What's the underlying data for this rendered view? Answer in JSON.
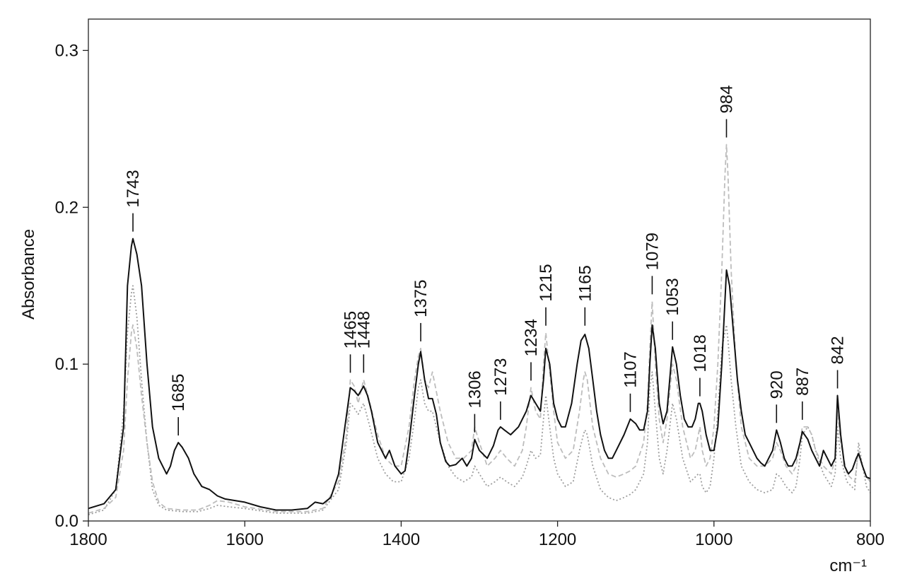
{
  "chart_data": {
    "type": "line",
    "xlabel": "cm⁻¹",
    "ylabel": "Absorbance",
    "xlim": [
      1800,
      800
    ],
    "ylim": [
      0.0,
      0.32
    ],
    "x_reversed": true,
    "x_ticks": [
      1800,
      1600,
      1400,
      1200,
      1000,
      800
    ],
    "y_ticks": [
      0.0,
      0.1,
      0.2,
      0.3
    ],
    "y_tick_labels": [
      "0.0",
      "0.1",
      "0.2",
      "0.3"
    ],
    "grid": false,
    "legend": "none",
    "series": [
      {
        "style": "solid",
        "color": "#111111",
        "x": [
          1800,
          1780,
          1765,
          1755,
          1750,
          1745,
          1743,
          1738,
          1732,
          1725,
          1718,
          1710,
          1700,
          1695,
          1690,
          1685,
          1680,
          1672,
          1665,
          1655,
          1645,
          1635,
          1625,
          1600,
          1580,
          1560,
          1540,
          1520,
          1510,
          1500,
          1490,
          1480,
          1472,
          1465,
          1460,
          1455,
          1448,
          1443,
          1438,
          1430,
          1420,
          1415,
          1408,
          1400,
          1395,
          1390,
          1383,
          1378,
          1375,
          1370,
          1365,
          1360,
          1355,
          1350,
          1343,
          1338,
          1330,
          1322,
          1316,
          1310,
          1306,
          1300,
          1290,
          1282,
          1276,
          1273,
          1268,
          1260,
          1250,
          1240,
          1234,
          1228,
          1222,
          1218,
          1215,
          1210,
          1205,
          1200,
          1195,
          1190,
          1182,
          1175,
          1170,
          1165,
          1160,
          1155,
          1150,
          1145,
          1140,
          1135,
          1130,
          1125,
          1115,
          1107,
          1100,
          1095,
          1090,
          1085,
          1082,
          1079,
          1075,
          1070,
          1065,
          1060,
          1053,
          1048,
          1043,
          1038,
          1033,
          1028,
          1024,
          1020,
          1018,
          1015,
          1010,
          1005,
          1000,
          995,
          990,
          985,
          984,
          980,
          975,
          970,
          965,
          960,
          955,
          950,
          945,
          940,
          935,
          930,
          925,
          920,
          915,
          910,
          905,
          900,
          895,
          890,
          887,
          880,
          875,
          870,
          865,
          860,
          855,
          850,
          845,
          842,
          838,
          833,
          828,
          823,
          818,
          815,
          810,
          805,
          800
        ],
        "values": [
          0.008,
          0.011,
          0.02,
          0.06,
          0.15,
          0.175,
          0.18,
          0.17,
          0.15,
          0.1,
          0.06,
          0.04,
          0.03,
          0.035,
          0.045,
          0.05,
          0.047,
          0.04,
          0.03,
          0.022,
          0.02,
          0.016,
          0.014,
          0.012,
          0.009,
          0.007,
          0.007,
          0.008,
          0.012,
          0.011,
          0.015,
          0.03,
          0.06,
          0.085,
          0.083,
          0.08,
          0.086,
          0.08,
          0.07,
          0.05,
          0.04,
          0.045,
          0.035,
          0.03,
          0.032,
          0.05,
          0.08,
          0.1,
          0.108,
          0.09,
          0.078,
          0.078,
          0.068,
          0.05,
          0.038,
          0.035,
          0.036,
          0.04,
          0.035,
          0.04,
          0.052,
          0.045,
          0.04,
          0.048,
          0.058,
          0.06,
          0.058,
          0.055,
          0.06,
          0.07,
          0.08,
          0.075,
          0.07,
          0.09,
          0.11,
          0.1,
          0.075,
          0.065,
          0.06,
          0.06,
          0.075,
          0.1,
          0.115,
          0.119,
          0.11,
          0.09,
          0.07,
          0.055,
          0.045,
          0.04,
          0.04,
          0.045,
          0.055,
          0.065,
          0.062,
          0.058,
          0.058,
          0.07,
          0.1,
          0.125,
          0.11,
          0.075,
          0.062,
          0.07,
          0.111,
          0.1,
          0.08,
          0.065,
          0.06,
          0.06,
          0.065,
          0.075,
          0.075,
          0.07,
          0.055,
          0.045,
          0.045,
          0.06,
          0.1,
          0.15,
          0.16,
          0.15,
          0.12,
          0.09,
          0.07,
          0.055,
          0.05,
          0.045,
          0.04,
          0.037,
          0.035,
          0.04,
          0.045,
          0.058,
          0.05,
          0.04,
          0.035,
          0.035,
          0.04,
          0.05,
          0.057,
          0.052,
          0.045,
          0.04,
          0.035,
          0.045,
          0.04,
          0.035,
          0.04,
          0.08,
          0.055,
          0.035,
          0.03,
          0.033,
          0.04,
          0.043,
          0.035,
          0.028,
          0.027
        ]
      },
      {
        "style": "dashed",
        "color": "#bdbdbd",
        "x": [
          1800,
          1780,
          1765,
          1755,
          1750,
          1745,
          1743,
          1738,
          1732,
          1725,
          1718,
          1710,
          1700,
          1680,
          1660,
          1645,
          1635,
          1620,
          1600,
          1560,
          1520,
          1500,
          1480,
          1470,
          1465,
          1460,
          1455,
          1448,
          1440,
          1430,
          1420,
          1410,
          1400,
          1390,
          1383,
          1378,
          1375,
          1370,
          1365,
          1360,
          1350,
          1340,
          1330,
          1320,
          1310,
          1306,
          1300,
          1290,
          1280,
          1273,
          1265,
          1255,
          1245,
          1240,
          1234,
          1228,
          1222,
          1218,
          1215,
          1210,
          1205,
          1200,
          1190,
          1180,
          1172,
          1167,
          1165,
          1162,
          1155,
          1145,
          1135,
          1125,
          1115,
          1107,
          1100,
          1090,
          1085,
          1082,
          1079,
          1075,
          1070,
          1065,
          1060,
          1053,
          1048,
          1040,
          1030,
          1024,
          1020,
          1018,
          1015,
          1010,
          1005,
          1000,
          995,
          990,
          986,
          984,
          982,
          978,
          972,
          965,
          955,
          945,
          935,
          925,
          920,
          915,
          908,
          900,
          895,
          890,
          887,
          880,
          875,
          870,
          860,
          850,
          845,
          842,
          838,
          830,
          820,
          815,
          810,
          805,
          800
        ],
        "values": [
          0.005,
          0.008,
          0.015,
          0.045,
          0.09,
          0.12,
          0.125,
          0.11,
          0.08,
          0.05,
          0.025,
          0.012,
          0.008,
          0.007,
          0.007,
          0.01,
          0.013,
          0.012,
          0.009,
          0.006,
          0.006,
          0.008,
          0.025,
          0.055,
          0.09,
          0.086,
          0.075,
          0.09,
          0.075,
          0.055,
          0.04,
          0.035,
          0.035,
          0.06,
          0.09,
          0.105,
          0.11,
          0.09,
          0.085,
          0.095,
          0.07,
          0.05,
          0.04,
          0.04,
          0.045,
          0.06,
          0.05,
          0.035,
          0.04,
          0.045,
          0.04,
          0.035,
          0.045,
          0.06,
          0.085,
          0.07,
          0.065,
          0.1,
          0.12,
          0.095,
          0.07,
          0.05,
          0.04,
          0.045,
          0.07,
          0.09,
          0.095,
          0.09,
          0.06,
          0.04,
          0.03,
          0.028,
          0.03,
          0.032,
          0.035,
          0.05,
          0.075,
          0.11,
          0.14,
          0.1,
          0.065,
          0.05,
          0.065,
          0.1,
          0.09,
          0.06,
          0.04,
          0.045,
          0.055,
          0.06,
          0.045,
          0.035,
          0.04,
          0.06,
          0.1,
          0.16,
          0.22,
          0.24,
          0.22,
          0.16,
          0.1,
          0.06,
          0.04,
          0.035,
          0.035,
          0.04,
          0.05,
          0.045,
          0.035,
          0.03,
          0.035,
          0.05,
          0.06,
          0.06,
          0.055,
          0.045,
          0.035,
          0.03,
          0.04,
          0.07,
          0.05,
          0.03,
          0.025,
          0.045,
          0.035,
          0.028,
          0.025
        ]
      },
      {
        "style": "dotted",
        "color": "#9e9e9e",
        "x": [
          1800,
          1780,
          1765,
          1755,
          1750,
          1745,
          1743,
          1738,
          1732,
          1725,
          1718,
          1710,
          1700,
          1680,
          1660,
          1645,
          1635,
          1620,
          1600,
          1560,
          1520,
          1500,
          1480,
          1470,
          1465,
          1460,
          1455,
          1448,
          1440,
          1430,
          1420,
          1410,
          1400,
          1390,
          1383,
          1378,
          1375,
          1370,
          1365,
          1360,
          1350,
          1340,
          1330,
          1320,
          1310,
          1306,
          1300,
          1290,
          1280,
          1273,
          1265,
          1255,
          1245,
          1240,
          1234,
          1228,
          1222,
          1218,
          1215,
          1210,
          1205,
          1200,
          1190,
          1180,
          1172,
          1167,
          1165,
          1162,
          1155,
          1145,
          1135,
          1125,
          1115,
          1107,
          1100,
          1090,
          1085,
          1082,
          1079,
          1075,
          1070,
          1065,
          1060,
          1053,
          1048,
          1040,
          1030,
          1024,
          1020,
          1018,
          1015,
          1010,
          1005,
          1000,
          995,
          990,
          986,
          984,
          982,
          978,
          972,
          965,
          955,
          945,
          935,
          925,
          920,
          915,
          908,
          900,
          895,
          890,
          887,
          880,
          875,
          870,
          860,
          850,
          845,
          842,
          838,
          830,
          820,
          815,
          810,
          805,
          800
        ],
        "values": [
          0.004,
          0.007,
          0.02,
          0.07,
          0.12,
          0.145,
          0.15,
          0.13,
          0.09,
          0.05,
          0.02,
          0.01,
          0.007,
          0.006,
          0.006,
          0.008,
          0.01,
          0.009,
          0.008,
          0.005,
          0.005,
          0.007,
          0.02,
          0.05,
          0.075,
          0.072,
          0.068,
          0.075,
          0.06,
          0.04,
          0.03,
          0.025,
          0.025,
          0.04,
          0.065,
          0.085,
          0.09,
          0.075,
          0.07,
          0.07,
          0.05,
          0.035,
          0.028,
          0.025,
          0.028,
          0.035,
          0.03,
          0.022,
          0.025,
          0.028,
          0.025,
          0.022,
          0.028,
          0.035,
          0.045,
          0.04,
          0.042,
          0.065,
          0.08,
          0.06,
          0.04,
          0.03,
          0.022,
          0.025,
          0.045,
          0.055,
          0.058,
          0.055,
          0.035,
          0.02,
          0.015,
          0.013,
          0.015,
          0.017,
          0.02,
          0.03,
          0.05,
          0.085,
          0.095,
          0.07,
          0.04,
          0.03,
          0.045,
          0.075,
          0.065,
          0.04,
          0.025,
          0.028,
          0.03,
          0.03,
          0.022,
          0.018,
          0.022,
          0.04,
          0.07,
          0.11,
          0.12,
          0.125,
          0.115,
          0.09,
          0.06,
          0.035,
          0.025,
          0.02,
          0.018,
          0.02,
          0.03,
          0.028,
          0.022,
          0.018,
          0.022,
          0.04,
          0.055,
          0.06,
          0.055,
          0.045,
          0.03,
          0.022,
          0.03,
          0.06,
          0.04,
          0.025,
          0.02,
          0.05,
          0.035,
          0.022,
          0.018
        ]
      }
    ],
    "annotations": [
      {
        "label": "1743",
        "x": 1743,
        "y": 0.18
      },
      {
        "label": "1685",
        "x": 1685,
        "y": 0.05
      },
      {
        "label": "1465",
        "x": 1465,
        "y": 0.09
      },
      {
        "label": "1448",
        "x": 1448,
        "y": 0.09
      },
      {
        "label": "1375",
        "x": 1375,
        "y": 0.11
      },
      {
        "label": "1306",
        "x": 1306,
        "y": 0.052
      },
      {
        "label": "1273",
        "x": 1273,
        "y": 0.06
      },
      {
        "label": "1234",
        "x": 1234,
        "y": 0.085
      },
      {
        "label": "1215",
        "x": 1215,
        "y": 0.12
      },
      {
        "label": "1165",
        "x": 1165,
        "y": 0.12
      },
      {
        "label": "1107",
        "x": 1107,
        "y": 0.065
      },
      {
        "label": "1079",
        "x": 1079,
        "y": 0.14
      },
      {
        "label": "1053",
        "x": 1053,
        "y": 0.111
      },
      {
        "label": "1018",
        "x": 1018,
        "y": 0.075
      },
      {
        "label": "984",
        "x": 984,
        "y": 0.24
      },
      {
        "label": "920",
        "x": 920,
        "y": 0.058
      },
      {
        "label": "887",
        "x": 887,
        "y": 0.06
      },
      {
        "label": "842",
        "x": 842,
        "y": 0.08
      }
    ]
  }
}
